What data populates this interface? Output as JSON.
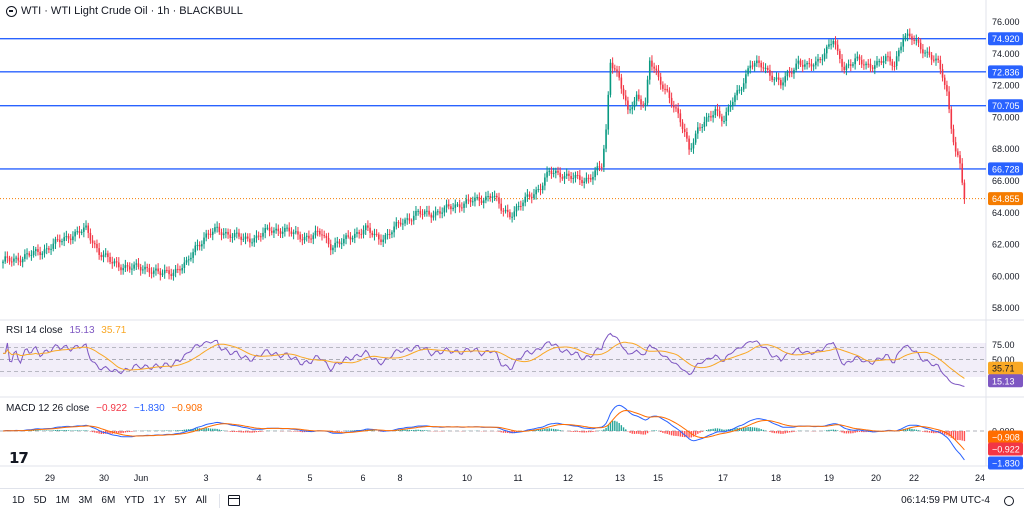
{
  "header": {
    "symbol_icon": "globe-icon",
    "title": "WTI · WTI Light Crude Oil · 1h · BLACKBULL"
  },
  "colors": {
    "up": "#089981",
    "down": "#f23645",
    "level_line": "#2962ff",
    "last_price": "#f57c00",
    "rsi_line": "#7e57c2",
    "rsi_ma": "#f9a825",
    "macd_line": "#2962ff",
    "signal_line": "#ff6d00",
    "hist_up": "#26a69a",
    "hist_down": "#ff5252"
  },
  "price_axis": {
    "ticks": [
      "76.000",
      "74.000",
      "72.000",
      "70.000",
      "68.000",
      "66.000",
      "64.000",
      "62.000",
      "60.000",
      "58.000"
    ],
    "levels": [
      {
        "value": 74.92,
        "label": "74.920"
      },
      {
        "value": 72.836,
        "label": "72.836"
      },
      {
        "value": 70.705,
        "label": "70.705"
      },
      {
        "value": 66.728,
        "label": "66.728"
      }
    ],
    "last_price": {
      "value": 64.855,
      "label": "64.855"
    }
  },
  "time_axis": {
    "labels": [
      "29",
      "30",
      "Jun",
      "3",
      "4",
      "5",
      "6",
      "8",
      "10",
      "11",
      "12",
      "13",
      "15",
      "17",
      "18",
      "19",
      "20",
      "22",
      "24"
    ]
  },
  "rsi": {
    "label": "RSI 14 close",
    "value": "15.13",
    "ma_value": "35.71",
    "ticks": [
      "75.00",
      "50.00",
      "25.00"
    ],
    "bands": {
      "upper": 70,
      "mid": 50,
      "lower": 30
    }
  },
  "macd": {
    "label": "MACD 12 26 close",
    "hist": "−0.922",
    "macd": "−1.830",
    "signal": "−0.908",
    "ticks": [
      "0.000"
    ],
    "axis_labels": [
      "−0.908",
      "−0.922",
      "−1.830"
    ]
  },
  "chart_data": {
    "type": "candlestick",
    "symbol": "WTI · WTI Light Crude Oil · 1h · BLACKBULL",
    "ylim": [
      57.6,
      76.6
    ],
    "anchors": [
      [
        0,
        60.9
      ],
      [
        10,
        61.2
      ],
      [
        20,
        61.7
      ],
      [
        30,
        62.5
      ],
      [
        38,
        62.9
      ],
      [
        44,
        61.5
      ],
      [
        50,
        60.8
      ],
      [
        58,
        60.5
      ],
      [
        66,
        60.5
      ],
      [
        72,
        60.1
      ],
      [
        78,
        60.3
      ],
      [
        84,
        60.7
      ],
      [
        88,
        61.8
      ],
      [
        92,
        62.4
      ],
      [
        98,
        62.9
      ],
      [
        104,
        62.6
      ],
      [
        110,
        62.3
      ],
      [
        116,
        62.4
      ],
      [
        122,
        62.9
      ],
      [
        128,
        62.9
      ],
      [
        134,
        62.6
      ],
      [
        140,
        62.4
      ],
      [
        146,
        62.7
      ],
      [
        150,
        61.9
      ],
      [
        154,
        62.0
      ],
      [
        160,
        62.6
      ],
      [
        166,
        62.9
      ],
      [
        172,
        62.4
      ],
      [
        176,
        62.5
      ],
      [
        182,
        63.4
      ],
      [
        190,
        63.9
      ],
      [
        200,
        64.0
      ],
      [
        206,
        64.4
      ],
      [
        212,
        64.6
      ],
      [
        218,
        64.8
      ],
      [
        224,
        65.1
      ],
      [
        228,
        64.2
      ],
      [
        232,
        63.9
      ],
      [
        236,
        64.3
      ],
      [
        240,
        64.9
      ],
      [
        246,
        65.6
      ],
      [
        250,
        66.5
      ],
      [
        256,
        66.4
      ],
      [
        262,
        66.1
      ],
      [
        266,
        66.0
      ],
      [
        270,
        66.4
      ],
      [
        274,
        66.9
      ],
      [
        276,
        69.0
      ],
      [
        278,
        73.6
      ],
      [
        282,
        72.5
      ],
      [
        286,
        70.2
      ],
      [
        290,
        71.3
      ],
      [
        294,
        70.8
      ],
      [
        296,
        73.5
      ],
      [
        300,
        72.4
      ],
      [
        304,
        71.6
      ],
      [
        308,
        70.3
      ],
      [
        312,
        69.0
      ],
      [
        314,
        68.0
      ],
      [
        318,
        69.2
      ],
      [
        322,
        69.7
      ],
      [
        326,
        70.5
      ],
      [
        330,
        69.8
      ],
      [
        334,
        71.0
      ],
      [
        338,
        72.0
      ],
      [
        342,
        73.3
      ],
      [
        348,
        73.2
      ],
      [
        352,
        72.6
      ],
      [
        356,
        72.0
      ],
      [
        360,
        72.8
      ],
      [
        364,
        73.5
      ],
      [
        368,
        73.1
      ],
      [
        372,
        73.4
      ],
      [
        376,
        74.1
      ],
      [
        380,
        74.8
      ],
      [
        382,
        73.9
      ],
      [
        385,
        73.1
      ],
      [
        390,
        73.6
      ],
      [
        395,
        73.2
      ],
      [
        400,
        73.4
      ],
      [
        404,
        73.6
      ],
      [
        408,
        73.3
      ],
      [
        412,
        75.1
      ],
      [
        416,
        74.9
      ],
      [
        420,
        74.4
      ],
      [
        424,
        73.9
      ],
      [
        426,
        73.6
      ],
      [
        428,
        73.3
      ],
      [
        430,
        72.6
      ],
      [
        432,
        71.5
      ],
      [
        434,
        69.5
      ],
      [
        436,
        67.8
      ],
      [
        438,
        67.0
      ],
      [
        440,
        64.855
      ]
    ]
  }
}
